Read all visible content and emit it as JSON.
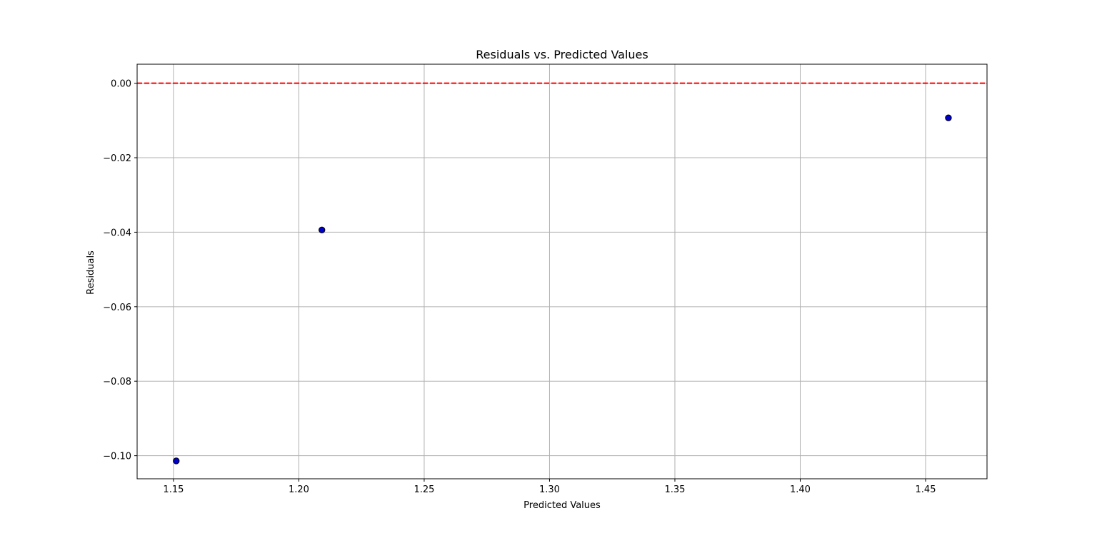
{
  "chart_data": {
    "type": "scatter",
    "title": "Residuals vs. Predicted Values",
    "xlabel": "Predicted Values",
    "ylabel": "Residuals",
    "xlim": [
      1.1355,
      1.4745
    ],
    "ylim": [
      -0.1062,
      0.0051
    ],
    "xticks": [
      1.15,
      1.2,
      1.25,
      1.3,
      1.35,
      1.4,
      1.45
    ],
    "xtick_labels": [
      "1.15",
      "1.20",
      "1.25",
      "1.30",
      "1.35",
      "1.40",
      "1.45"
    ],
    "yticks": [
      0.0,
      -0.02,
      -0.04,
      -0.06,
      -0.08,
      -0.1
    ],
    "ytick_labels": [
      "0.00",
      "−0.02",
      "−0.04",
      "−0.06",
      "−0.08",
      "−0.10"
    ],
    "grid": true,
    "points": [
      {
        "x": 1.1511,
        "y": -0.1014
      },
      {
        "x": 1.2092,
        "y": -0.0394
      },
      {
        "x": 1.4591,
        "y": -0.0093
      }
    ],
    "reference_line": {
      "y": 0.0,
      "style": "dashed",
      "color": "#ff0000"
    },
    "marker_color": "#0000cd",
    "marker_edge_color": "#000000",
    "grid_color": "#b0b0b0"
  }
}
